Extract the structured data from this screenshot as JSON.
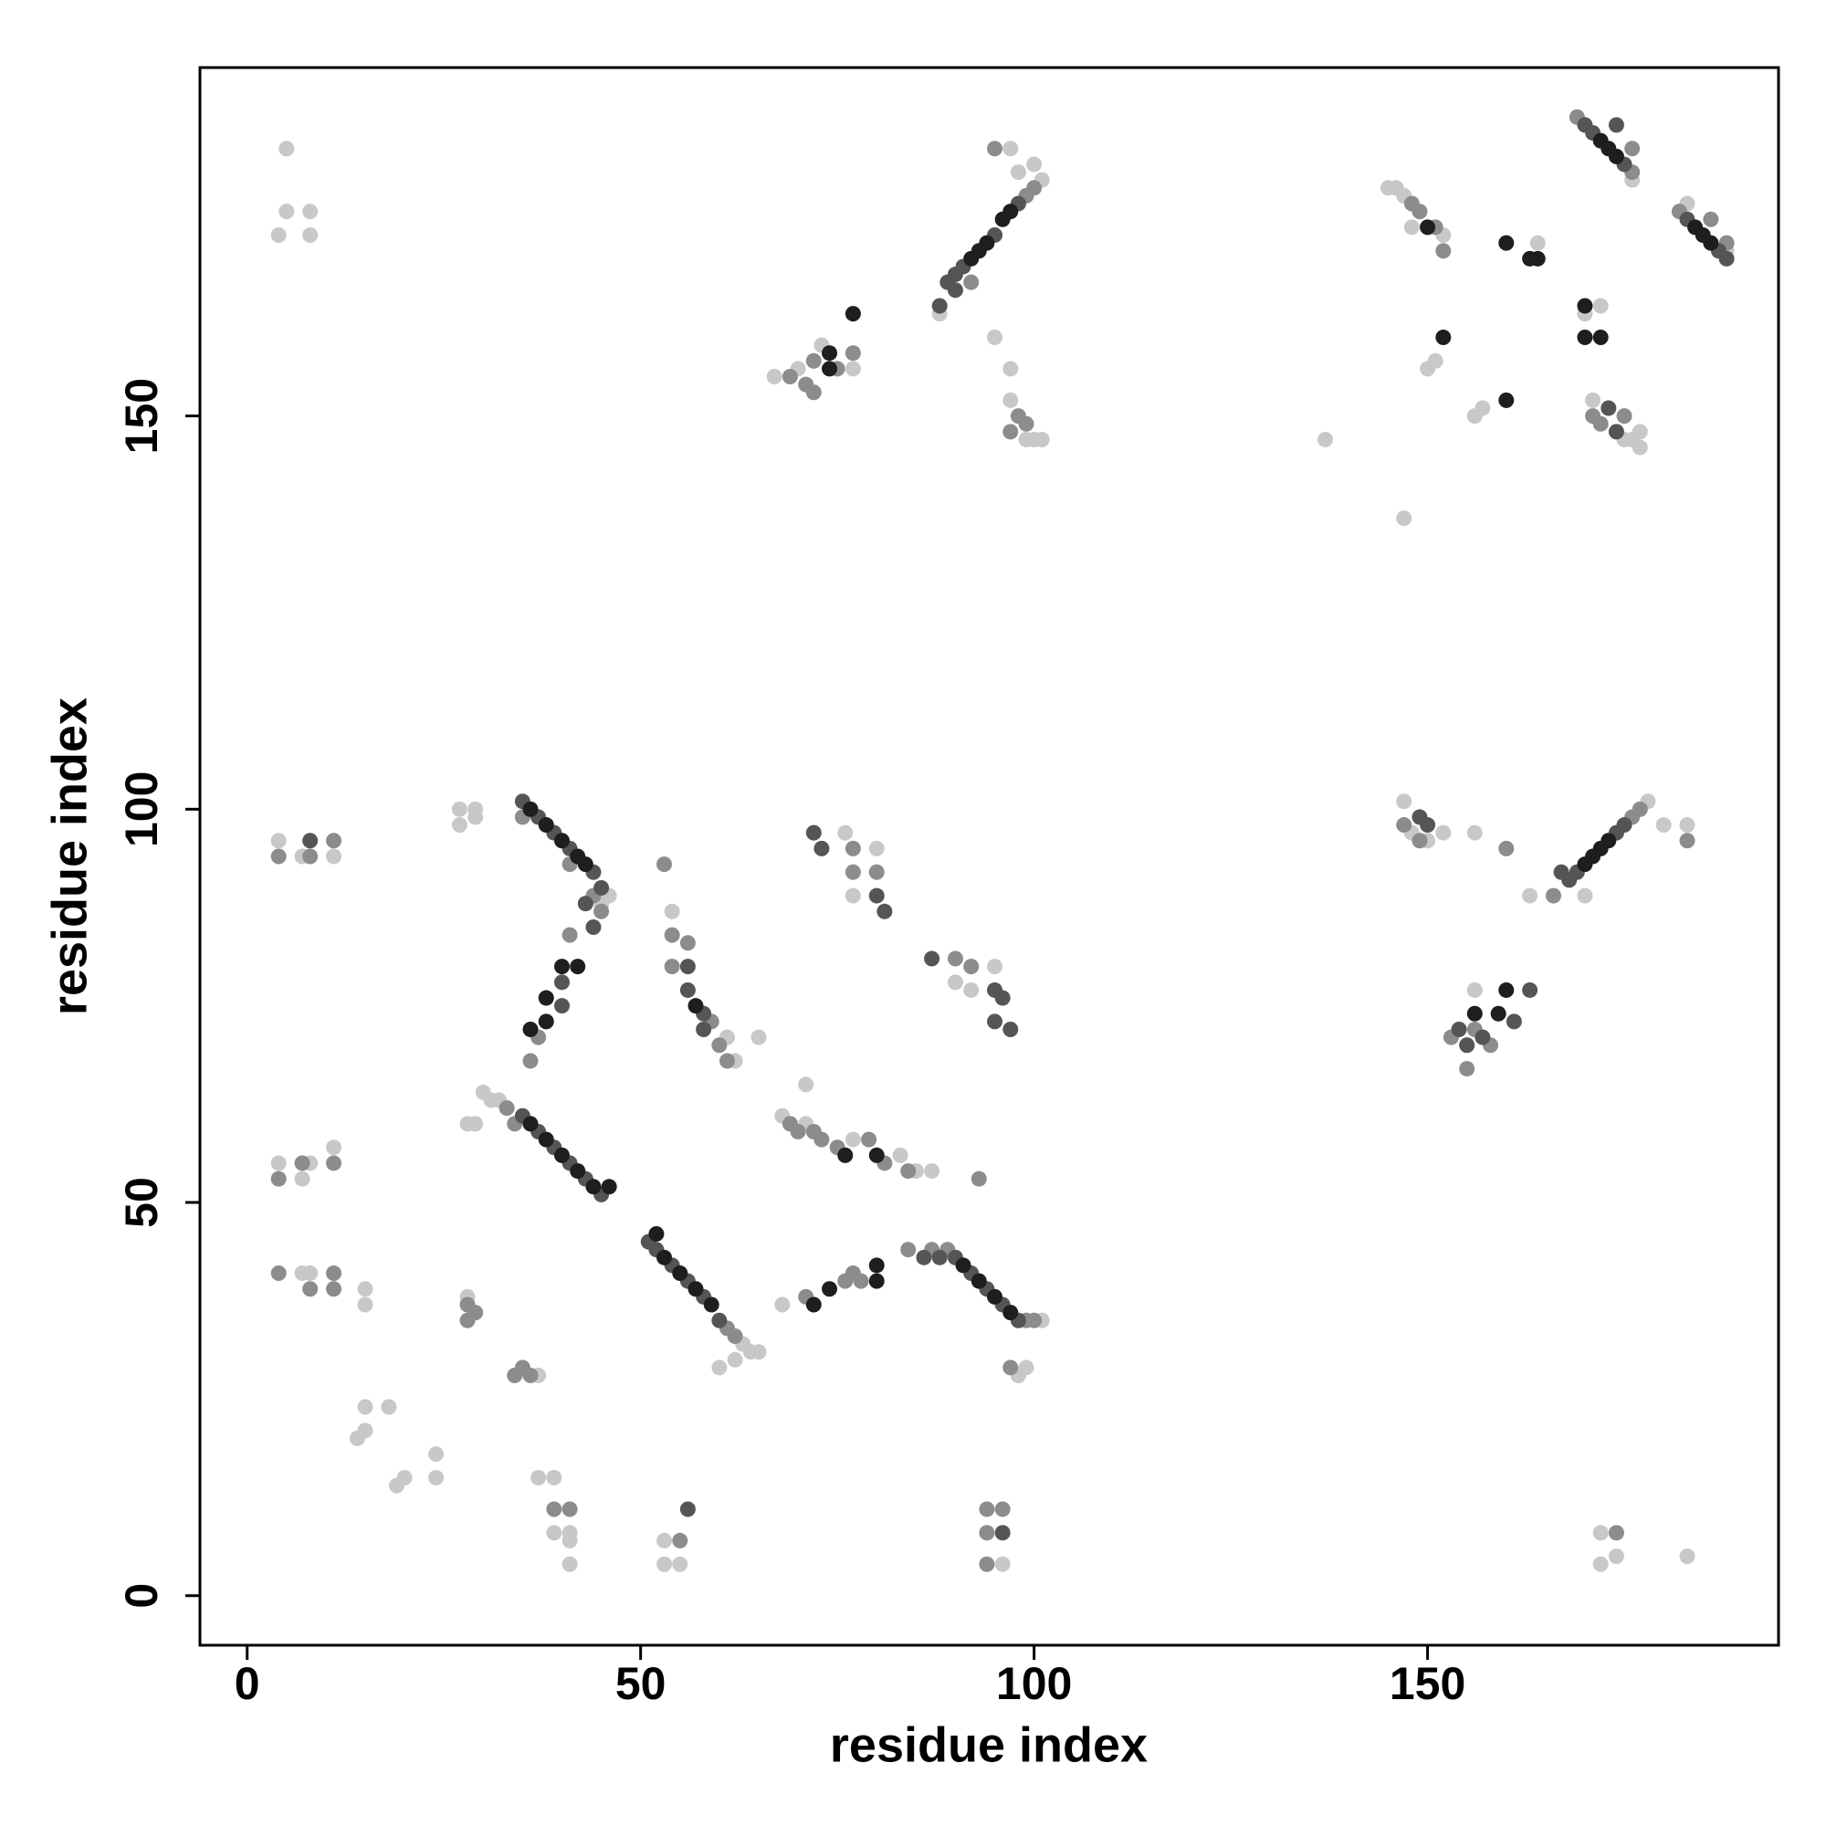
{
  "chart_data": {
    "type": "scatter",
    "x_label": "residue index",
    "y_label": "residue index",
    "xlim": [
      -6,
      194.6
    ],
    "ylim": [
      -6.3,
      194.3
    ],
    "xticks": [
      0,
      50,
      100,
      150
    ],
    "yticks": [
      0,
      50,
      100,
      150
    ],
    "grid": false,
    "series": [
      {
        "color": "#c8c8c8",
        "x": [
          4,
          5,
          5,
          8,
          8,
          4,
          7,
          11,
          4,
          7,
          8,
          11,
          7,
          8,
          15,
          15,
          15,
          15,
          14,
          18,
          19,
          20,
          24,
          24,
          27,
          27,
          29,
          29,
          30,
          31,
          32,
          28,
          29,
          28,
          37,
          37,
          39,
          39,
          41,
          41,
          41,
          46,
          45,
          54,
          62,
          61,
          65,
          63,
          64,
          65,
          60,
          62,
          68,
          71,
          71,
          77,
          83,
          85,
          87,
          68,
          101,
          98,
          99,
          96,
          53,
          53,
          55,
          76,
          77,
          80,
          90,
          92,
          95,
          67,
          70,
          73,
          77,
          101,
          100,
          97,
          98,
          88,
          95,
          97,
          97,
          99,
          100,
          101,
          137,
          147,
          145,
          146,
          147,
          148,
          152,
          150,
          151,
          156,
          157,
          164,
          176,
          188,
          183,
          170,
          172,
          171,
          175,
          176,
          177,
          177,
          147,
          148,
          150,
          152,
          156,
          163,
          178,
          180,
          183,
          170,
          155,
          156,
          172,
          172,
          174,
          183
        ],
        "y": [
          173,
          176,
          184,
          176,
          173,
          96,
          94,
          94,
          55,
          53,
          55,
          57,
          41,
          41,
          39,
          37,
          24,
          21,
          20,
          24,
          14,
          15,
          18,
          15,
          100,
          98,
          100,
          99,
          64,
          63,
          63,
          60,
          60,
          38,
          28,
          15,
          15,
          8,
          8,
          7,
          4,
          89,
          88,
          87,
          68,
          71,
          71,
          32,
          31,
          31,
          29,
          30,
          61,
          60,
          65,
          58,
          56,
          54,
          54,
          37,
          35,
          28,
          29,
          4,
          7,
          4,
          4,
          97,
          89,
          95,
          78,
          77,
          80,
          155,
          156,
          159,
          156,
          180,
          182,
          184,
          181,
          163,
          160,
          156,
          152,
          147,
          147,
          147,
          147,
          137,
          179,
          179,
          178,
          174,
          173,
          156,
          157,
          150,
          151,
          172,
          180,
          171,
          177,
          163,
          164,
          152,
          147,
          147,
          148,
          146,
          101,
          97,
          96,
          97,
          97,
          89,
          101,
          98,
          98,
          89,
          70,
          77,
          8,
          4,
          5,
          5
        ]
      },
      {
        "color": "#8c8c8c",
        "x": [
          4,
          8,
          11,
          4,
          7,
          11,
          4,
          8,
          11,
          11,
          28,
          28,
          29,
          34,
          35,
          36,
          35,
          41,
          44,
          45,
          41,
          37,
          36,
          33,
          34,
          54,
          54,
          56,
          59,
          60,
          61,
          62,
          61,
          53,
          69,
          70,
          72,
          73,
          75,
          79,
          81,
          84,
          93,
          71,
          76,
          77,
          78,
          84,
          87,
          89,
          99,
          100,
          97,
          94,
          96,
          94,
          94,
          77,
          80,
          77,
          90,
          92,
          69,
          71,
          72,
          72,
          75,
          77,
          99,
          100,
          92,
          95,
          98,
          97,
          99,
          148,
          149,
          151,
          152,
          176,
          176,
          169,
          182,
          186,
          188,
          171,
          172,
          175,
          147,
          149,
          160,
          166,
          176,
          177,
          183,
          153,
          155,
          156,
          158,
          174,
          39,
          41,
          55
        ],
        "y": [
          94,
          94,
          96,
          53,
          55,
          55,
          41,
          39,
          41,
          39,
          37,
          35,
          36,
          28,
          29,
          28,
          99,
          93,
          89,
          87,
          84,
          71,
          68,
          62,
          60,
          84,
          80,
          83,
          73,
          70,
          68,
          33,
          34,
          93,
          60,
          59,
          59,
          58,
          57,
          58,
          55,
          54,
          53,
          38,
          40,
          41,
          40,
          44,
          44,
          44,
          35,
          35,
          29,
          11,
          11,
          8,
          4,
          92,
          92,
          95,
          81,
          80,
          155,
          154,
          153,
          157,
          156,
          158,
          178,
          179,
          167,
          184,
          150,
          148,
          149,
          177,
          176,
          174,
          171,
          181,
          184,
          188,
          176,
          175,
          172,
          150,
          149,
          150,
          98,
          96,
          95,
          89,
          99,
          100,
          96,
          71,
          67,
          72,
          70,
          8,
          11,
          11,
          7
        ]
      },
      {
        "color": "#555555",
        "x": [
          35,
          37,
          39,
          41,
          44,
          45,
          43,
          44,
          40,
          40,
          35,
          37,
          39,
          41,
          43,
          45,
          51,
          52,
          54,
          56,
          58,
          60,
          56,
          56,
          58,
          58,
          72,
          73,
          81,
          80,
          87,
          95,
          96,
          95,
          97,
          86,
          88,
          90,
          92,
          94,
          96,
          98,
          89,
          90,
          91,
          95,
          98,
          88,
          90,
          171,
          170,
          175,
          174,
          183,
          187,
          188,
          173,
          174,
          149,
          150,
          169,
          168,
          174,
          175,
          167,
          154,
          155,
          157,
          161,
          163,
          8,
          96,
          56
        ],
        "y": [
          101,
          99,
          97,
          95,
          92,
          90,
          88,
          85,
          78,
          75,
          61,
          59,
          57,
          55,
          53,
          51,
          45,
          44,
          42,
          40,
          38,
          35,
          80,
          77,
          74,
          72,
          97,
          95,
          87,
          89,
          81,
          77,
          76,
          73,
          72,
          43,
          43,
          43,
          41,
          39,
          37,
          35,
          167,
          168,
          169,
          173,
          177,
          164,
          166,
          186,
          187,
          182,
          187,
          175,
          171,
          170,
          151,
          148,
          99,
          98,
          92,
          91,
          97,
          98,
          92,
          72,
          70,
          71,
          73,
          77,
          96,
          8,
          11
        ]
      },
      {
        "color": "#1e1e1e",
        "x": [
          36,
          38,
          40,
          42,
          43,
          40,
          42,
          38,
          36,
          38,
          36,
          38,
          40,
          42,
          44,
          46,
          52,
          53,
          55,
          57,
          59,
          57,
          76,
          80,
          74,
          72,
          80,
          80,
          91,
          93,
          95,
          97,
          92,
          94,
          96,
          97,
          93,
          74,
          77,
          74,
          172,
          174,
          173,
          184,
          186,
          185,
          170,
          170,
          172,
          152,
          160,
          160,
          163,
          164,
          171,
          172,
          173,
          170,
          156,
          160,
          159,
          150
        ],
        "y": [
          100,
          98,
          96,
          94,
          93,
          80,
          80,
          76,
          72,
          73,
          60,
          58,
          56,
          54,
          52,
          52,
          46,
          43,
          41,
          39,
          37,
          75,
          56,
          56,
          39,
          37,
          40,
          42,
          42,
          40,
          38,
          36,
          170,
          172,
          175,
          176,
          171,
          158,
          163,
          156,
          185,
          183,
          184,
          174,
          172,
          173,
          164,
          160,
          160,
          160,
          152,
          172,
          170,
          170,
          94,
          95,
          96,
          93,
          74,
          77,
          74,
          174
        ]
      }
    ]
  }
}
